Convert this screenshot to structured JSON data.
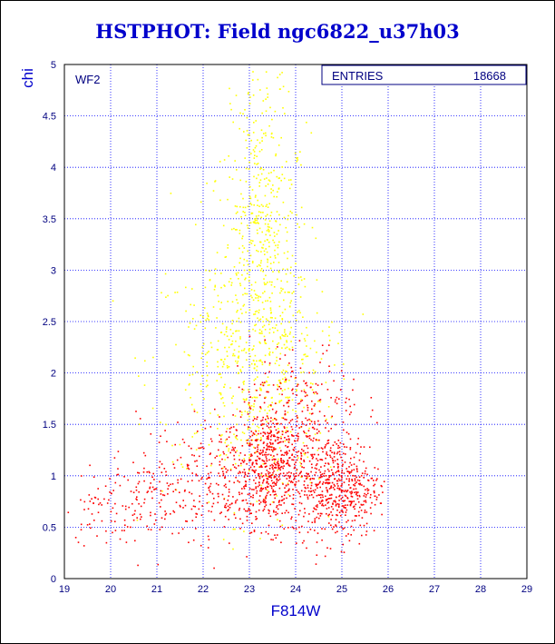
{
  "title": "HSTPHOT: Field ngc6822_u37h03",
  "chart_data": {
    "type": "scatter",
    "title": "HSTPHOT: Field ngc6822_u37h03",
    "xlabel": "F814W",
    "ylabel": "chi",
    "xlim": [
      19,
      29
    ],
    "ylim": [
      0,
      5
    ],
    "x_ticks": [
      "19",
      "20",
      "21",
      "22",
      "23",
      "24",
      "25",
      "26",
      "27",
      "28",
      "29"
    ],
    "y_ticks": [
      "0",
      "0.5",
      "1",
      "1.5",
      "2",
      "2.5",
      "3",
      "3.5",
      "4",
      "4.5",
      "5"
    ],
    "grid": true,
    "panel_label": "WF2",
    "stats": {
      "label": "ENTRIES",
      "value": "18668"
    },
    "colors": {
      "yellow": "#ffff00",
      "red": "#ff0000",
      "axis": "#0000cc",
      "grid": "#0000ff"
    },
    "series": [
      {
        "color": "#ffff00",
        "description": "broad scattered cloud of high chi points",
        "clumps": [
          {
            "x": 23.2,
            "y": 2.6,
            "sx": 0.55,
            "sy": 1.0
          },
          {
            "x": 22.6,
            "y": 2.1,
            "sx": 0.9,
            "sy": 0.6
          },
          {
            "x": 23.6,
            "y": 1.9,
            "sx": 0.6,
            "sy": 0.5
          },
          {
            "x": 23.3,
            "y": 3.6,
            "sx": 0.35,
            "sy": 0.7
          }
        ]
      },
      {
        "color": "#ff0000",
        "description": "dense concentration of low chi points",
        "clumps": [
          {
            "x": 23.5,
            "y": 1.1,
            "sx": 0.45,
            "sy": 0.3
          },
          {
            "x": 24.9,
            "y": 0.9,
            "sx": 0.45,
            "sy": 0.25
          },
          {
            "x": 22.4,
            "y": 1.0,
            "sx": 0.9,
            "sy": 0.3
          },
          {
            "x": 20.5,
            "y": 0.75,
            "sx": 0.8,
            "sy": 0.2
          },
          {
            "x": 24.2,
            "y": 1.7,
            "sx": 0.6,
            "sy": 0.3
          }
        ]
      }
    ]
  }
}
